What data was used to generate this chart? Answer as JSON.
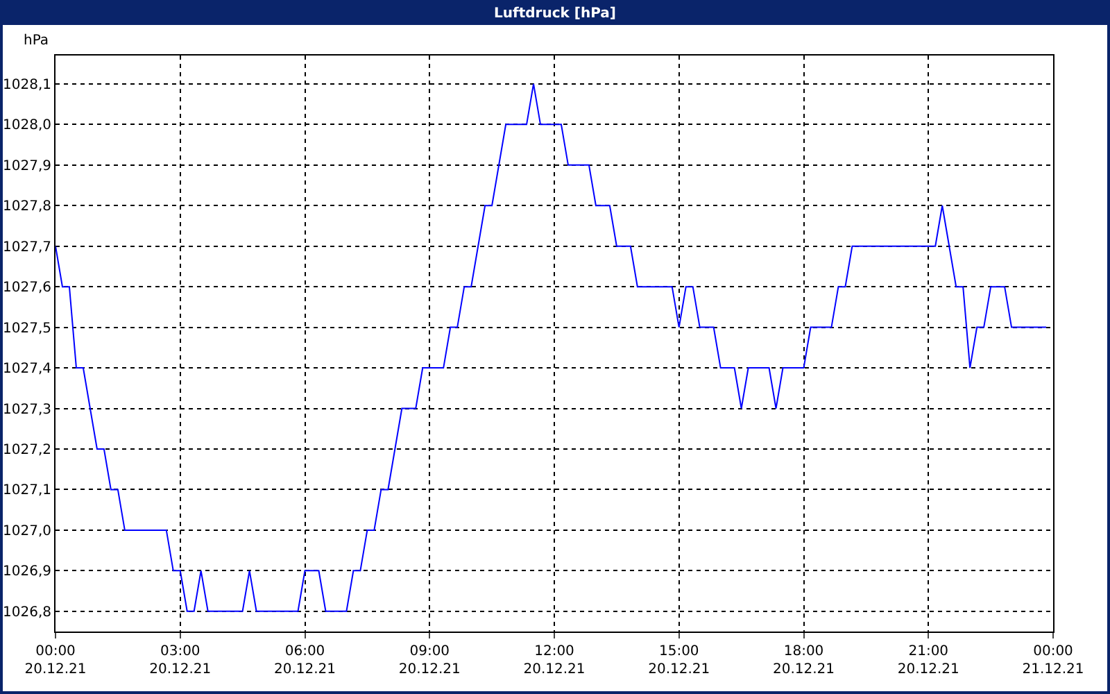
{
  "chart_data": {
    "type": "line",
    "title": "Luftdruck [hPa]",
    "ylabel": "hPa",
    "x": [
      "--12-20T00:00",
      "--12-20T00:10",
      "--12-20T00:20",
      "--12-20T00:30",
      "--12-20T00:40",
      "--12-20T01:00",
      "--12-20T01:10",
      "--12-20T01:20",
      "--12-20T01:30",
      "--12-20T01:40",
      "--12-20T02:40",
      "--12-20T02:50",
      "--12-20T03:00",
      "--12-20T03:10",
      "--12-20T03:20",
      "--12-20T03:30",
      "--12-20T03:40",
      "--12-20T04:30",
      "--12-20T04:40",
      "--12-20T04:50",
      "--12-20T05:50",
      "--12-20T06:00",
      "--12-20T06:20",
      "--12-20T06:30",
      "--12-20T07:00",
      "--12-20T07:10",
      "--12-20T07:20",
      "--12-20T07:30",
      "--12-20T07:40",
      "--12-20T07:50",
      "--12-20T08:00",
      "--12-20T08:20",
      "--12-20T08:40",
      "--12-20T08:50",
      "--12-20T09:20",
      "--12-20T09:30",
      "--12-20T09:40",
      "--12-20T09:50",
      "--12-20T10:00",
      "--12-20T10:20",
      "--12-20T10:30",
      "--12-20T10:50",
      "--12-20T11:20",
      "--12-20T11:30",
      "--12-20T11:40",
      "--12-20T12:10",
      "--12-20T12:20",
      "--12-20T12:50",
      "--12-20T13:00",
      "--12-20T13:20",
      "--12-20T13:30",
      "--12-20T13:50",
      "--12-20T14:00",
      "--12-20T14:50",
      "--12-20T15:00",
      "--12-20T15:10",
      "--12-20T15:20",
      "--12-20T15:30",
      "--12-20T15:50",
      "--12-20T16:00",
      "--12-20T16:20",
      "--12-20T16:30",
      "--12-20T16:40",
      "--12-20T17:10",
      "--12-20T17:20",
      "--12-20T17:30",
      "--12-20T18:00",
      "--12-20T18:10",
      "--12-20T18:40",
      "--12-20T18:50",
      "--12-20T19:00",
      "--12-20T19:10",
      "--12-20T21:10",
      "--12-20T21:20",
      "--12-20T21:40",
      "--12-20T21:50",
      "--12-20T22:00",
      "--12-20T22:10",
      "--12-20T22:20",
      "--12-20T22:30",
      "--12-20T22:50",
      "--12-20T23:00",
      "--12-20T23:50"
    ],
    "series": [
      {
        "color": "#0000ff",
        "values": [
          1027.7,
          1027.6,
          1027.6,
          1027.4,
          1027.4,
          1027.2,
          1027.2,
          1027.1,
          1027.1,
          1027.0,
          1027.0,
          1026.9,
          1026.9,
          1026.8,
          1026.8,
          1026.9,
          1026.8,
          1026.8,
          1026.9,
          1026.8,
          1026.8,
          1026.9,
          1026.9,
          1026.8,
          1026.8,
          1026.9,
          1026.9,
          1027.0,
          1027.0,
          1027.1,
          1027.1,
          1027.3,
          1027.3,
          1027.4,
          1027.4,
          1027.5,
          1027.5,
          1027.6,
          1027.6,
          1027.8,
          1027.8,
          1028.0,
          1028.0,
          1028.1,
          1028.0,
          1028.0,
          1027.9,
          1027.9,
          1027.8,
          1027.8,
          1027.7,
          1027.7,
          1027.6,
          1027.6,
          1027.5,
          1027.6,
          1027.6,
          1027.5,
          1027.5,
          1027.4,
          1027.4,
          1027.3,
          1027.4,
          1027.4,
          1027.3,
          1027.4,
          1027.4,
          1027.5,
          1027.5,
          1027.6,
          1027.6,
          1027.7,
          1027.7,
          1027.8,
          1027.6,
          1027.6,
          1027.4,
          1027.5,
          1027.5,
          1027.6,
          1027.6,
          1027.5,
          1027.5
        ]
      }
    ],
    "xlim": [
      "--12-20T00:00",
      "--12-21T00:00"
    ],
    "xticks": [
      {
        "value": "--12-20T00:00",
        "label": "00:00\n20.12.21"
      },
      {
        "value": "--12-20T03:00",
        "label": "03:00\n20.12.21"
      },
      {
        "value": "--12-20T06:00",
        "label": "06:00\n20.12.21"
      },
      {
        "value": "--12-20T09:00",
        "label": "09:00\n20.12.21"
      },
      {
        "value": "--12-20T12:00",
        "label": "12:00\n20.12.21"
      },
      {
        "value": "--12-20T15:00",
        "label": "15:00\n20.12.21"
      },
      {
        "value": "--12-20T18:00",
        "label": "18:00\n20.12.21"
      },
      {
        "value": "--12-20T21:00",
        "label": "21:00\n20.12.21"
      },
      {
        "value": "--12-21T00:00",
        "label": "00:00\n21.12.21"
      }
    ],
    "ylim": [
      1026.75,
      1028.17
    ],
    "yticks": [
      {
        "value": 1026.8,
        "label": "1026,8"
      },
      {
        "value": 1026.9,
        "label": "1026,9"
      },
      {
        "value": 1027.0,
        "label": "1027,0"
      },
      {
        "value": 1027.1,
        "label": "1027,1"
      },
      {
        "value": 1027.2,
        "label": "1027,2"
      },
      {
        "value": 1027.3,
        "label": "1027,3"
      },
      {
        "value": 1027.4,
        "label": "1027,4"
      },
      {
        "value": 1027.5,
        "label": "1027,5"
      },
      {
        "value": 1027.6,
        "label": "1027,6"
      },
      {
        "value": 1027.7,
        "label": "1027,7"
      },
      {
        "value": 1027.8,
        "label": "1027,8"
      },
      {
        "value": 1027.9,
        "label": "1027,9"
      },
      {
        "value": 1028.0,
        "label": "1028,0"
      },
      {
        "value": 1028.1,
        "label": "1028,1"
      }
    ],
    "grid": true,
    "line_style": "solid",
    "marker": "none"
  }
}
